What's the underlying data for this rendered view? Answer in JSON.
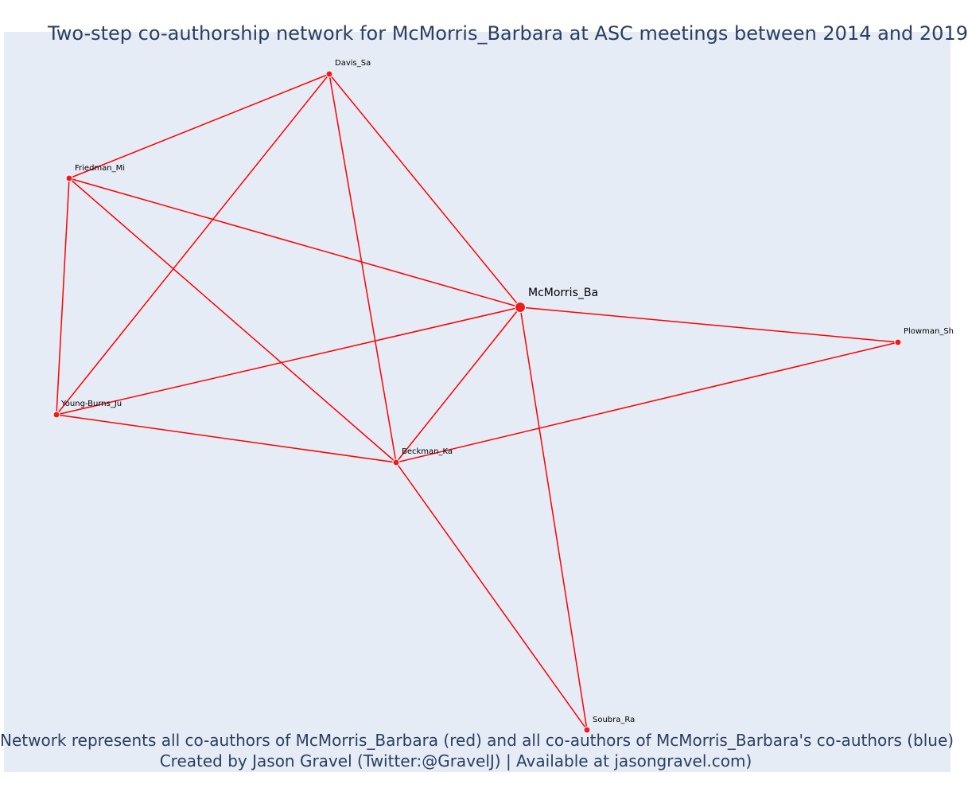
{
  "title": "Two-step co-authorship network for McMorris_Barbara at ASC meetings between 2014 and 2019",
  "caption": {
    "line1": "Network represents all co-authors of McMorris_Barbara (red) and all co-authors of McMorris_Barbara's co-authors (blue)",
    "line2": "Created by Jason Gravel (Twitter:@GravelJ) | Available at jasongravel.com)"
  },
  "colors": {
    "edge": "#ff0000",
    "node": "#ee1c1c",
    "plot_background": "#e5ecf6",
    "text": "#2a3f5f"
  },
  "network": {
    "nodes": [
      {
        "id": "McMorris_Ba",
        "label": "McMorris_Ba",
        "focal": true
      },
      {
        "id": "Davis_Sa",
        "label": "Davis_Sa",
        "focal": false
      },
      {
        "id": "Friedman_Mi",
        "label": "Friedman_Mi",
        "focal": false
      },
      {
        "id": "Young-Burns_Ju",
        "label": "Young-Burns_Ju",
        "focal": false
      },
      {
        "id": "Beckman_Ka",
        "label": "Beckman_Ka",
        "focal": false
      },
      {
        "id": "Plowman_Sh",
        "label": "Plowman_Sh",
        "focal": false
      },
      {
        "id": "Soubra_Ra",
        "label": "Soubra_Ra",
        "focal": false
      }
    ],
    "edges": [
      [
        "Davis_Sa",
        "Friedman_Mi"
      ],
      [
        "Davis_Sa",
        "Young-Burns_Ju"
      ],
      [
        "Davis_Sa",
        "Beckman_Ka"
      ],
      [
        "Davis_Sa",
        "McMorris_Ba"
      ],
      [
        "Friedman_Mi",
        "Young-Burns_Ju"
      ],
      [
        "Friedman_Mi",
        "McMorris_Ba"
      ],
      [
        "Friedman_Mi",
        "Beckman_Ka"
      ],
      [
        "Young-Burns_Ju",
        "McMorris_Ba"
      ],
      [
        "Young-Burns_Ju",
        "Beckman_Ka"
      ],
      [
        "McMorris_Ba",
        "Beckman_Ka"
      ],
      [
        "McMorris_Ba",
        "Plowman_Sh"
      ],
      [
        "McMorris_Ba",
        "Soubra_Ra"
      ],
      [
        "Beckman_Ka",
        "Plowman_Sh"
      ],
      [
        "Beckman_Ka",
        "Soubra_Ra"
      ]
    ]
  }
}
